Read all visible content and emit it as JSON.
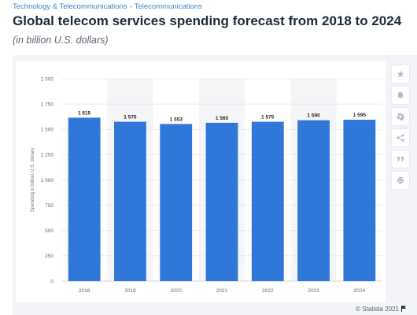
{
  "breadcrumb": {
    "item1": "Technology & Telecommunications",
    "separator": "›",
    "item2": "Telecommunications"
  },
  "header": {
    "title": "Global telecom services spending forecast from 2018 to 2024",
    "subtitle": "(in billion U.S. dollars)"
  },
  "toolbar": {
    "icons": [
      "star-icon",
      "bell-icon",
      "gear-icon",
      "share-icon",
      "quote-icon",
      "print-icon"
    ]
  },
  "footer": {
    "credit": "© Statista 2021"
  },
  "colors": {
    "bar": "#2f77d9",
    "stripe": "#f4f5f7",
    "grid": "#e3e6ea",
    "link": "#3a86c8"
  },
  "chart_data": {
    "type": "bar",
    "categories": [
      "2018",
      "2019",
      "2020",
      "2021",
      "2022",
      "2023",
      "2024"
    ],
    "values": [
      1615,
      1575,
      1553,
      1565,
      1575,
      1590,
      1595
    ],
    "value_labels": [
      "1 615",
      "1 575",
      "1 553",
      "1 565",
      "1 575",
      "1 590",
      "1 595"
    ],
    "ylabel": "Spending in billion U.S. dollars",
    "ylim": [
      0,
      2000
    ],
    "yticks": [
      0,
      250,
      500,
      750,
      1000,
      1250,
      1500,
      1750,
      2000
    ],
    "ytick_labels": [
      "0",
      "250",
      "500",
      "750",
      "1 000",
      "1 250",
      "1 500",
      "1 750",
      "2 000"
    ],
    "grid": true,
    "alternating_column_shading": true
  }
}
